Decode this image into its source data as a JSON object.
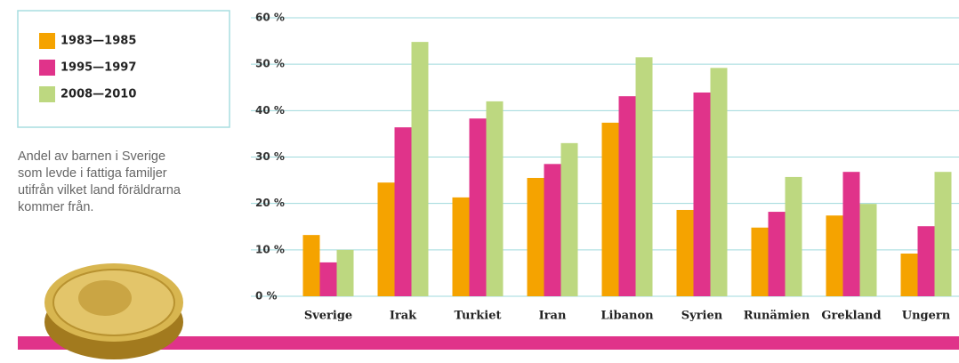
{
  "chart_data": {
    "type": "bar",
    "categories": [
      "Sverige",
      "Irak",
      "Turkiet",
      "Iran",
      "Libanon",
      "Syrien",
      "Runämien",
      "Grekland",
      "Ungern"
    ],
    "series": [
      {
        "name": "1983—1985",
        "color": "#f5a300",
        "values": [
          13.2,
          24.5,
          21.3,
          25.5,
          37.4,
          18.6,
          14.8,
          17.4,
          9.2
        ]
      },
      {
        "name": "1995—1997",
        "color": "#e0338a",
        "values": [
          7.3,
          36.4,
          38.3,
          28.5,
          43.1,
          43.9,
          18.2,
          26.8,
          15.1
        ]
      },
      {
        "name": "2008—2010",
        "color": "#bdd880",
        "values": [
          10,
          54.8,
          42,
          33,
          51.5,
          49.2,
          25.7,
          19.9,
          26.8
        ]
      }
    ],
    "ylim": [
      0,
      60
    ],
    "yticks": [
      {
        "value": 0,
        "label": "0 %"
      },
      {
        "value": 10,
        "label": "10 %"
      },
      {
        "value": 20,
        "label": "20 %"
      },
      {
        "value": 30,
        "label": "30 %"
      },
      {
        "value": 40,
        "label": "40 %"
      },
      {
        "value": 50,
        "label": "50 %"
      },
      {
        "value": 60,
        "label": "60 %"
      }
    ],
    "grid": true,
    "description": [
      "Andel av barnen i Sverige",
      "som levde i fattiga familjer",
      "utifrån vilket land föräldrarna",
      "kommer från."
    ]
  }
}
